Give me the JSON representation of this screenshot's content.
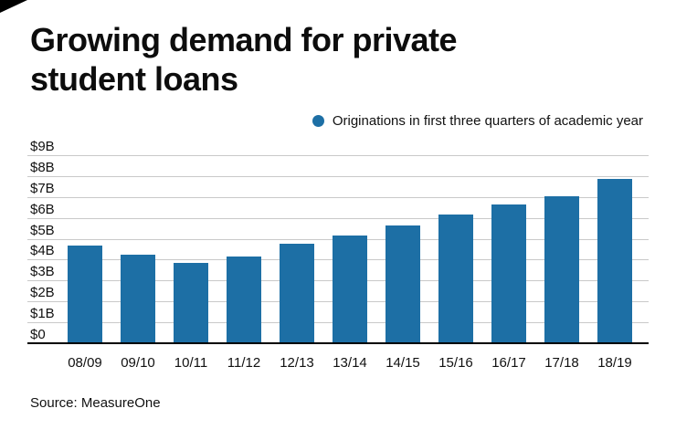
{
  "page": {
    "title_line1": "Growing demand for private",
    "title_line2": "student loans",
    "source": "Source: MeasureOne"
  },
  "legend": {
    "label": "Originations in first three quarters of academic year"
  },
  "colors": {
    "bar": "#1d6fa5",
    "grid": "#c9c9c9",
    "baseline": "#000000"
  },
  "chart_data": {
    "type": "bar",
    "title": "Growing demand for private student loans",
    "categories": [
      "08/09",
      "09/10",
      "10/11",
      "11/12",
      "12/13",
      "13/14",
      "14/15",
      "15/16",
      "16/17",
      "17/18",
      "18/19"
    ],
    "values": [
      4.7,
      4.3,
      3.9,
      4.2,
      4.8,
      5.2,
      5.7,
      6.2,
      6.7,
      7.1,
      7.9
    ],
    "units": "billions USD",
    "ylim": [
      0,
      9
    ],
    "ytick_labels": [
      "$0",
      "$1B",
      "$2B",
      "$3B",
      "$4B",
      "$5B",
      "$6B",
      "$7B",
      "$8B",
      "$9B"
    ],
    "xlabel": "",
    "ylabel": "",
    "grid": true,
    "legend": [
      "Originations in first three quarters of academic year"
    ],
    "legend_position": "top-right",
    "source": "Source: MeasureOne"
  }
}
